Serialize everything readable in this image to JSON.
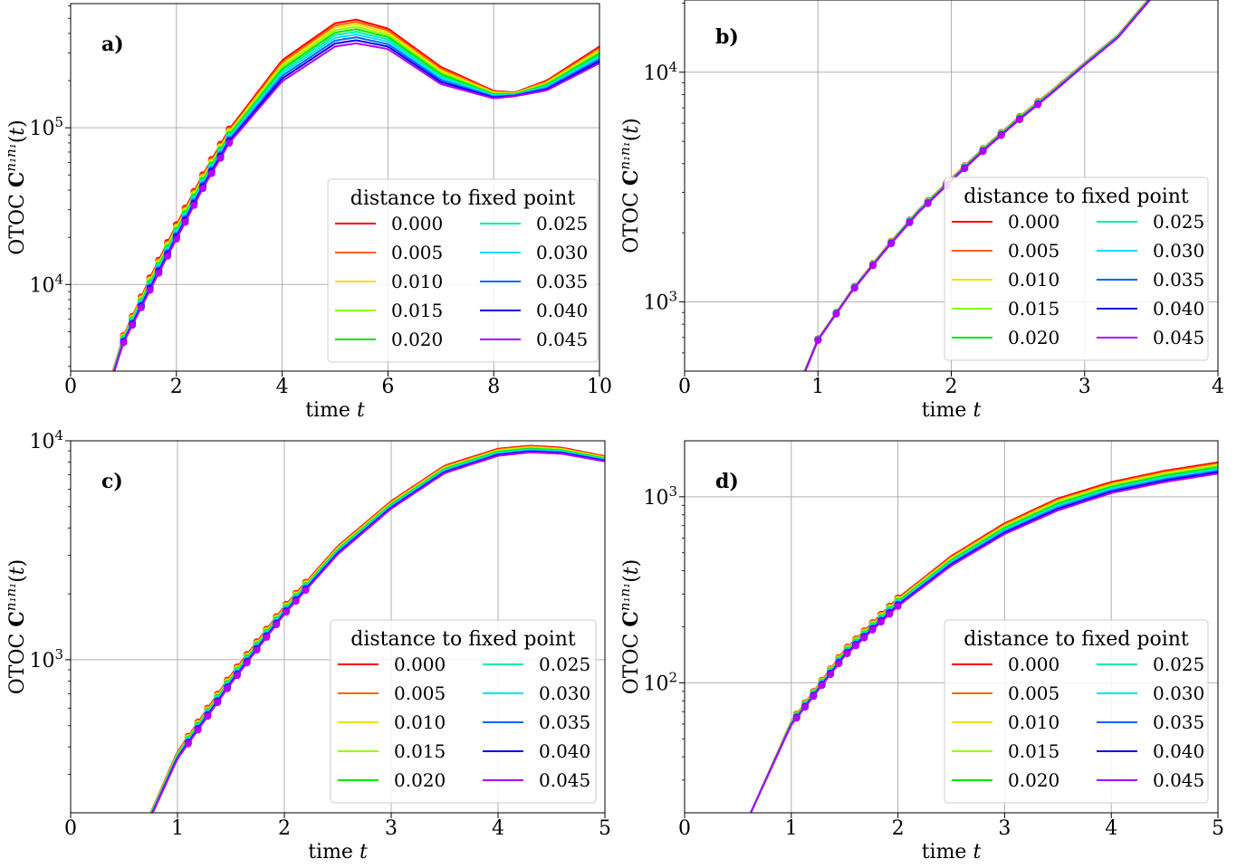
{
  "legend": {
    "title": "distance to fixed point",
    "entries": [
      "0.000",
      "0.005",
      "0.010",
      "0.015",
      "0.020",
      "0.025",
      "0.030",
      "0.035",
      "0.040",
      "0.045"
    ],
    "colors": [
      "#ff0000",
      "#ff6400",
      "#f0e000",
      "#90ff00",
      "#00e800",
      "#00f0a0",
      "#00e0ff",
      "#0064ff",
      "#1000e8",
      "#b400ff"
    ]
  },
  "chart_data": [
    {
      "panel": "a)",
      "type": "line",
      "xlabel": "time t",
      "ylabel": "OTOC C^{n1n1}(t)",
      "log_y": true,
      "grid": true,
      "legend_position": "lower right",
      "xlim": [
        0,
        10
      ],
      "ylim": [
        2800,
        620000
      ],
      "xticks": [
        "0",
        "2",
        "4",
        "6",
        "8",
        "10"
      ],
      "yticks": [
        {
          "value": 10000,
          "label": "10^4"
        },
        {
          "value": 100000,
          "label": "10^5"
        }
      ],
      "marker_range": [
        1.0,
        3.0
      ],
      "series_x": [
        0.8,
        1.0,
        1.5,
        2.0,
        2.5,
        3.0,
        4.0,
        5.0,
        5.4,
        6.0,
        7.0,
        8.0,
        8.4,
        9.0,
        10.0
      ],
      "series": [
        {
          "name": "0.000",
          "values": [
            2800,
            4700,
            11000,
            24000,
            50000,
            98000,
            270000,
            465000,
            490000,
            430000,
            245000,
            172000,
            168000,
            200000,
            330000
          ]
        },
        {
          "name": "0.005",
          "values": [
            2780,
            4650,
            10800,
            23500,
            49000,
            96000,
            262000,
            450000,
            474000,
            418000,
            239000,
            170000,
            167000,
            197000,
            322000
          ]
        },
        {
          "name": "0.010",
          "values": [
            2760,
            4600,
            10600,
            23000,
            48000,
            94000,
            254000,
            435000,
            458000,
            405000,
            232000,
            168000,
            166000,
            194000,
            314000
          ]
        },
        {
          "name": "0.015",
          "values": [
            2740,
            4550,
            10400,
            22500,
            47000,
            92000,
            246000,
            420000,
            442000,
            392000,
            226000,
            166000,
            165000,
            191000,
            306000
          ]
        },
        {
          "name": "0.020",
          "values": [
            2720,
            4500,
            10200,
            22000,
            46000,
            90000,
            238000,
            405000,
            426000,
            380000,
            220000,
            164000,
            164000,
            188000,
            298000
          ]
        },
        {
          "name": "0.025",
          "values": [
            2700,
            4450,
            10000,
            21500,
            45000,
            88000,
            230000,
            390000,
            410000,
            367000,
            214000,
            162000,
            163000,
            185000,
            290000
          ]
        },
        {
          "name": "0.030",
          "values": [
            2680,
            4400,
            9800,
            21000,
            44000,
            86000,
            222000,
            375000,
            394000,
            355000,
            208000,
            160000,
            162000,
            182000,
            282000
          ]
        },
        {
          "name": "0.035",
          "values": [
            2660,
            4350,
            9600,
            20500,
            43000,
            84000,
            214000,
            360000,
            378000,
            342000,
            202000,
            158000,
            161000,
            179000,
            274000
          ]
        },
        {
          "name": "0.040",
          "values": [
            2640,
            4300,
            9400,
            20000,
            42000,
            82000,
            206000,
            345000,
            362000,
            330000,
            196000,
            156000,
            160000,
            176000,
            266000
          ]
        },
        {
          "name": "0.045",
          "values": [
            2620,
            4250,
            9200,
            19500,
            41000,
            80000,
            198000,
            330000,
            346000,
            318000,
            190000,
            154000,
            159000,
            173000,
            258000
          ]
        }
      ]
    },
    {
      "panel": "b)",
      "type": "line",
      "xlabel": "time t",
      "ylabel": "OTOC C^{n1n1}(t)",
      "log_y": true,
      "grid": true,
      "legend_position": "lower right",
      "xlim": [
        0,
        4
      ],
      "ylim": [
        500,
        21000
      ],
      "xticks": [
        "0",
        "1",
        "2",
        "3",
        "4"
      ],
      "yticks": [
        {
          "value": 1000,
          "label": "10^3"
        },
        {
          "value": 10000,
          "label": "10^4"
        }
      ],
      "marker_range": [
        1.0,
        2.65
      ],
      "series_x": [
        0.9,
        1.0,
        1.25,
        1.5,
        1.75,
        2.0,
        2.25,
        2.5,
        2.75,
        3.0,
        3.25,
        3.5
      ],
      "series": [
        {
          "name": "0.000",
          "values": [
            500,
            690,
            1120,
            1700,
            2500,
            3450,
            4720,
            6320,
            8300,
            11000,
            14500,
            21500
          ]
        },
        {
          "name": "0.005",
          "values": [
            499,
            689,
            1118,
            1696,
            2493,
            3440,
            4706,
            6300,
            8273,
            10970,
            14460,
            21440
          ]
        },
        {
          "name": "0.010",
          "values": [
            498,
            688,
            1116,
            1692,
            2486,
            3430,
            4692,
            6280,
            8246,
            10940,
            14420,
            21380
          ]
        },
        {
          "name": "0.015",
          "values": [
            497,
            687,
            1114,
            1688,
            2479,
            3420,
            4678,
            6260,
            8219,
            10910,
            14380,
            21320
          ]
        },
        {
          "name": "0.020",
          "values": [
            496,
            686,
            1112,
            1684,
            2472,
            3410,
            4664,
            6240,
            8192,
            10880,
            14340,
            21260
          ]
        },
        {
          "name": "0.025",
          "values": [
            495,
            685,
            1110,
            1680,
            2465,
            3400,
            4650,
            6220,
            8165,
            10850,
            14300,
            21200
          ]
        },
        {
          "name": "0.030",
          "values": [
            494,
            684,
            1108,
            1676,
            2458,
            3390,
            4636,
            6200,
            8138,
            10820,
            14260,
            21140
          ]
        },
        {
          "name": "0.035",
          "values": [
            493,
            683,
            1106,
            1672,
            2451,
            3380,
            4622,
            6180,
            8111,
            10790,
            14220,
            21080
          ]
        },
        {
          "name": "0.040",
          "values": [
            492,
            682,
            1104,
            1668,
            2444,
            3370,
            4608,
            6160,
            8084,
            10760,
            14180,
            21020
          ]
        },
        {
          "name": "0.045",
          "values": [
            491,
            681,
            1102,
            1664,
            2437,
            3360,
            4594,
            6140,
            8057,
            10730,
            14140,
            20960
          ]
        }
      ]
    },
    {
      "panel": "c)",
      "type": "line",
      "xlabel": "time t",
      "ylabel": "OTOC C^{n1n1}(t)",
      "log_y": true,
      "grid": true,
      "legend_position": "lower right",
      "xlim": [
        0,
        5
      ],
      "ylim": [
        200,
        10000
      ],
      "xticks": [
        "0",
        "1",
        "2",
        "3",
        "4",
        "5"
      ],
      "yticks": [
        {
          "value": 1000,
          "label": "10^3"
        },
        {
          "value": 10000,
          "label": "10^4"
        }
      ],
      "marker_range": [
        1.1,
        2.2
      ],
      "series_x": [
        0.75,
        1.0,
        1.5,
        2.0,
        2.5,
        3.0,
        3.5,
        4.0,
        4.3,
        4.6,
        5.0
      ],
      "series": [
        {
          "name": "0.000",
          "values": [
            200,
            380,
            850,
            1750,
            3300,
            5300,
            7700,
            9200,
            9500,
            9300,
            8500
          ]
        },
        {
          "name": "0.005",
          "values": [
            199,
            377,
            842,
            1735,
            3270,
            5255,
            7635,
            9127,
            9428,
            9236,
            8450
          ]
        },
        {
          "name": "0.010",
          "values": [
            198,
            374,
            834,
            1720,
            3240,
            5210,
            7570,
            9054,
            9356,
            9172,
            8400
          ]
        },
        {
          "name": "0.015",
          "values": [
            197,
            371,
            826,
            1705,
            3210,
            5165,
            7505,
            8981,
            9284,
            9108,
            8350
          ]
        },
        {
          "name": "0.020",
          "values": [
            196,
            368,
            818,
            1690,
            3180,
            5120,
            7440,
            8908,
            9212,
            9044,
            8300
          ]
        },
        {
          "name": "0.025",
          "values": [
            195,
            365,
            810,
            1675,
            3150,
            5075,
            7375,
            8835,
            9140,
            8980,
            8250
          ]
        },
        {
          "name": "0.030",
          "values": [
            194,
            362,
            802,
            1660,
            3120,
            5030,
            7310,
            8762,
            9068,
            8916,
            8200
          ]
        },
        {
          "name": "0.035",
          "values": [
            193,
            359,
            794,
            1645,
            3090,
            4985,
            7245,
            8689,
            8996,
            8852,
            8150
          ]
        },
        {
          "name": "0.040",
          "values": [
            192,
            356,
            786,
            1630,
            3060,
            4940,
            7180,
            8616,
            8924,
            8788,
            8100
          ]
        },
        {
          "name": "0.045",
          "values": [
            191,
            353,
            778,
            1615,
            3030,
            4895,
            7115,
            8543,
            8852,
            8724,
            8050
          ]
        }
      ]
    },
    {
      "panel": "d)",
      "type": "line",
      "xlabel": "time t",
      "ylabel": "OTOC C^{n1n1}(t)",
      "log_y": true,
      "grid": true,
      "legend_position": "lower right",
      "xlim": [
        0,
        5
      ],
      "ylim": [
        20,
        2000
      ],
      "xticks": [
        "0",
        "1",
        "2",
        "3",
        "4",
        "5"
      ],
      "yticks": [
        {
          "value": 100,
          "label": "10^2"
        },
        {
          "value": 1000,
          "label": "10^3"
        }
      ],
      "marker_range": [
        1.05,
        2.0
      ],
      "series_x": [
        0.62,
        1.0,
        1.5,
        2.0,
        2.5,
        3.0,
        3.5,
        4.0,
        4.5,
        5.0
      ],
      "series": [
        {
          "name": "0.000",
          "values": [
            20,
            62,
            150,
            285,
            480,
            720,
            980,
            1200,
            1380,
            1530
          ]
        },
        {
          "name": "0.005",
          "values": [
            20,
            61.7,
            148.8,
            282,
            474,
            710,
            965,
            1183,
            1360,
            1508
          ]
        },
        {
          "name": "0.010",
          "values": [
            20,
            61.4,
            147.6,
            279,
            468,
            700,
            950,
            1166,
            1340,
            1486
          ]
        },
        {
          "name": "0.015",
          "values": [
            20,
            61.1,
            146.4,
            276,
            462,
            690,
            935,
            1149,
            1320,
            1464
          ]
        },
        {
          "name": "0.020",
          "values": [
            20,
            60.8,
            145.2,
            273,
            456,
            680,
            920,
            1132,
            1300,
            1442
          ]
        },
        {
          "name": "0.025",
          "values": [
            20,
            60.5,
            144,
            270,
            450,
            670,
            905,
            1115,
            1280,
            1420
          ]
        },
        {
          "name": "0.030",
          "values": [
            20,
            60.2,
            142.8,
            267,
            444,
            660,
            890,
            1098,
            1260,
            1398
          ]
        },
        {
          "name": "0.035",
          "values": [
            20,
            59.9,
            141.6,
            264,
            438,
            650,
            875,
            1081,
            1240,
            1376
          ]
        },
        {
          "name": "0.040",
          "values": [
            20,
            59.6,
            140.4,
            261,
            432,
            640,
            860,
            1064,
            1220,
            1354
          ]
        },
        {
          "name": "0.045",
          "values": [
            20,
            59.3,
            139.2,
            258,
            426,
            630,
            845,
            1047,
            1200,
            1332
          ]
        }
      ]
    }
  ]
}
